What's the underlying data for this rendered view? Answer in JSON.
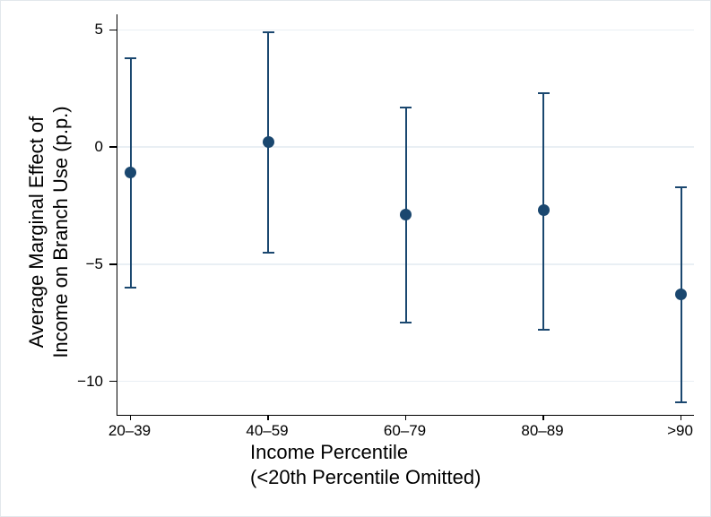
{
  "figure": {
    "background": "#ffffff",
    "border_color": "#e2e8ec"
  },
  "chart_data": {
    "type": "scatter",
    "subtype": "point-estimates-with-95pct-confidence-intervals",
    "title": "",
    "categories": [
      "20–39",
      "40–59",
      "60–79",
      "80–89",
      ">90"
    ],
    "series": [
      {
        "name": "Average Marginal Effect of Income on Branch Use",
        "estimates": [
          -1.1,
          0.2,
          -2.9,
          -2.7,
          -6.3
        ],
        "ci_low": [
          -6.0,
          -4.5,
          -7.5,
          -7.8,
          -10.9
        ],
        "ci_high": [
          3.8,
          4.9,
          1.7,
          2.3,
          -1.7
        ]
      }
    ],
    "xlabel_lines": [
      "Income Percentile",
      "(<20th Percentile Omitted)"
    ],
    "ylabel_lines": [
      "Average Marginal Effect of",
      "Income on Branch Use (p.p.)"
    ],
    "yticks": [
      5,
      0,
      -5,
      -10
    ],
    "ytick_labels": [
      "5",
      "0",
      "−5",
      "−10"
    ],
    "ylim": [
      -11.43,
      5.66
    ],
    "grid": "horizontal",
    "legend": "none",
    "marker_color": "#1a476f",
    "grid_color": "#e9eff4",
    "axis_color": "#000000",
    "text_color": "#000000",
    "background": "#ffffff"
  }
}
